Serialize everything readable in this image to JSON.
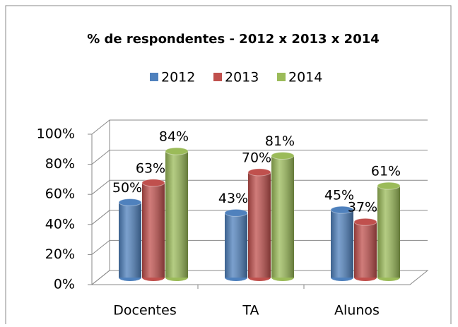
{
  "chart_data": {
    "type": "bar3d",
    "title": "%  de respondentes - 2012 x 2013 x 2014",
    "categories": [
      "Docentes",
      "TA",
      "Alunos"
    ],
    "series": [
      {
        "name": "2012",
        "color": "#4f81bd",
        "values": [
          50,
          43,
          45
        ],
        "value_labels": [
          "50%",
          "43%",
          "45%"
        ]
      },
      {
        "name": "2013",
        "color": "#c0504d",
        "values": [
          63,
          70,
          37
        ],
        "value_labels": [
          "63%",
          "70%",
          "37%"
        ]
      },
      {
        "name": "2014",
        "color": "#9bbb59",
        "values": [
          84,
          81,
          61
        ],
        "value_labels": [
          "84%",
          "81%",
          "61%"
        ]
      }
    ],
    "ylim": [
      0,
      100
    ],
    "yticks": [
      {
        "value": 0,
        "label": "0%"
      },
      {
        "value": 20,
        "label": "20%"
      },
      {
        "value": 40,
        "label": "40%"
      },
      {
        "value": 60,
        "label": "60%"
      },
      {
        "value": 80,
        "label": "80%"
      },
      {
        "value": 100,
        "label": "100%"
      }
    ],
    "grid": true,
    "legend": "top"
  }
}
